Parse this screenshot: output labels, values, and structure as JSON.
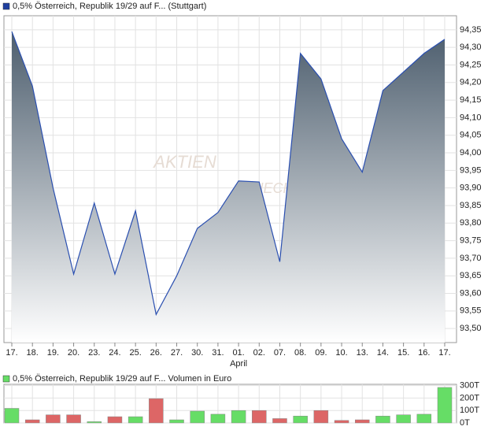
{
  "chart_data": [
    {
      "type": "area",
      "title": "0,5% Österreich, Republik 19/29 auf F... (Stuttgart)",
      "legend_color": "#1f3f9f",
      "watermark": [
        "AKTIEN",
        "CHECK"
      ],
      "categories": [
        "17.",
        "18.",
        "19.",
        "20.",
        "23.",
        "24.",
        "25.",
        "26.",
        "27.",
        "30.",
        "31.",
        "01.",
        "02.",
        "07.",
        "08.",
        "09.",
        "10.",
        "13.",
        "14.",
        "15.",
        "16.",
        "17."
      ],
      "x_annotation": {
        "index": 11,
        "text": "April"
      },
      "values": [
        94.345,
        94.19,
        93.9,
        93.655,
        93.857,
        93.655,
        93.835,
        93.54,
        93.65,
        93.785,
        93.83,
        93.92,
        93.917,
        93.69,
        94.283,
        94.21,
        94.04,
        93.945,
        94.177,
        94.23,
        94.283,
        94.323
      ],
      "color": "#2a4fb0",
      "fill_top": "#4d5e6e",
      "fill_bottom": "#ffffff",
      "ylim": [
        93.46,
        94.39
      ],
      "yticks": [
        {
          "value": 94.35,
          "label": "94,35"
        },
        {
          "value": 94.3,
          "label": "94,30"
        },
        {
          "value": 94.25,
          "label": "94,25"
        },
        {
          "value": 94.2,
          "label": "94,20"
        },
        {
          "value": 94.15,
          "label": "94,15"
        },
        {
          "value": 94.1,
          "label": "94,10"
        },
        {
          "value": 94.05,
          "label": "94,05"
        },
        {
          "value": 94.0,
          "label": "94,00"
        },
        {
          "value": 93.95,
          "label": "93,95"
        },
        {
          "value": 93.9,
          "label": "93,90"
        },
        {
          "value": 93.85,
          "label": "93,85"
        },
        {
          "value": 93.8,
          "label": "93,80"
        },
        {
          "value": 93.75,
          "label": "93,75"
        },
        {
          "value": 93.7,
          "label": "93,70"
        },
        {
          "value": 93.65,
          "label": "93,65"
        },
        {
          "value": 93.6,
          "label": "93,60"
        },
        {
          "value": 93.55,
          "label": "93,55"
        },
        {
          "value": 93.5,
          "label": "93,50"
        }
      ],
      "grid": true
    },
    {
      "type": "bar",
      "title": "0,5% Österreich, Republik 19/29 auf F... Volumen in Euro",
      "legend_color": "#66dd66",
      "values": [
        117000,
        25000,
        65000,
        65000,
        10000,
        50000,
        50000,
        195000,
        25000,
        95000,
        70000,
        100000,
        100000,
        35000,
        55000,
        100000,
        20000,
        25000,
        55000,
        65000,
        70000,
        285000
      ],
      "colors": [
        "#66dd66",
        "#dd6666",
        "#dd6666",
        "#dd6666",
        "#66dd66",
        "#dd6666",
        "#66dd66",
        "#dd6666",
        "#66dd66",
        "#66dd66",
        "#66dd66",
        "#66dd66",
        "#dd6666",
        "#dd6666",
        "#66dd66",
        "#dd6666",
        "#dd6666",
        "#dd6666",
        "#66dd66",
        "#66dd66",
        "#66dd66",
        "#66dd66"
      ],
      "ylim": [
        0,
        310000
      ],
      "yticks": [
        {
          "value": 300000,
          "label": "300T"
        },
        {
          "value": 200000,
          "label": "200T"
        },
        {
          "value": 100000,
          "label": "100T"
        },
        {
          "value": 0,
          "label": "0T"
        }
      ],
      "grid": true
    }
  ]
}
